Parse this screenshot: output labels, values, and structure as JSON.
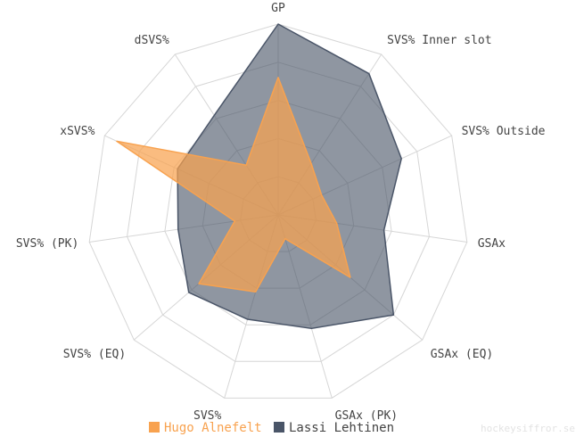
{
  "chart_data": {
    "type": "radar",
    "axes": [
      "GP",
      "SVS% Inner slot",
      "SVS% Outside",
      "GSAx",
      "GSAx (EQ)",
      "GSAx (PK)",
      "SVS%",
      "SVS% (EQ)",
      "SVS% (PK)",
      "xSVS%",
      "dSVS%"
    ],
    "range": [
      0,
      1
    ],
    "grid_levels": 5,
    "series": [
      {
        "name": "Lassi Lehtinen",
        "color": "#4a5568",
        "fill_opacity": 0.62,
        "values": [
          1.0,
          0.88,
          0.71,
          0.56,
          0.8,
          0.62,
          0.57,
          0.62,
          0.53,
          0.58,
          0.62
        ]
      },
      {
        "name": "Hugo Alnefelt",
        "color": "#f8a24f",
        "fill_opacity": 0.72,
        "values": [
          0.72,
          0.32,
          0.25,
          0.31,
          0.5,
          0.13,
          0.42,
          0.55,
          0.23,
          0.93,
          0.31
        ]
      }
    ],
    "legend": "bottom",
    "grid": true
  },
  "legend": {
    "items": [
      {
        "label": "Hugo Alnefelt",
        "color": "#f8a24f"
      },
      {
        "label": "Lassi Lehtinen",
        "color": "#4a5568"
      }
    ]
  },
  "watermark": "hockeysiffror.se"
}
